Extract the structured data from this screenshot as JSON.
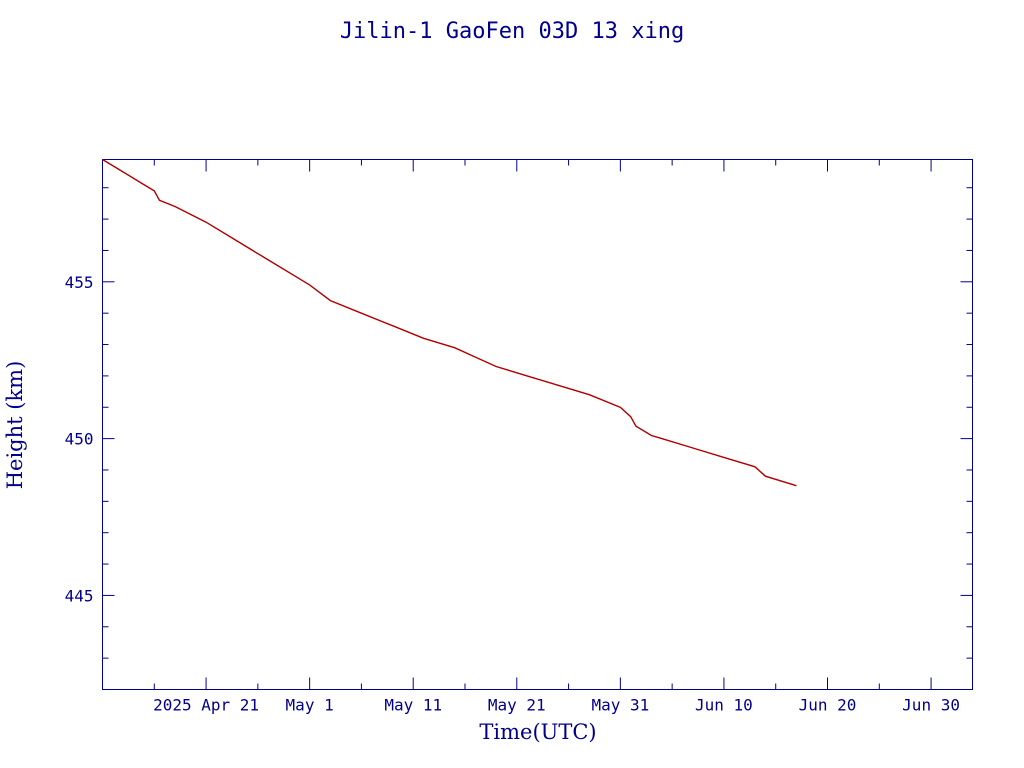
{
  "chart_data": {
    "type": "line",
    "title": "Jilin-1 GaoFen 03D 13 xing",
    "xlabel": "Time(UTC)",
    "ylabel": "Height (km)",
    "x_ticks": [
      {
        "date": "2025-04-21",
        "label": "2025 Apr 21"
      },
      {
        "date": "2025-05-01",
        "label": "May  1"
      },
      {
        "date": "2025-05-11",
        "label": "May 11"
      },
      {
        "date": "2025-05-21",
        "label": "May 21"
      },
      {
        "date": "2025-05-31",
        "label": "May 31"
      },
      {
        "date": "2025-06-10",
        "label": "Jun 10"
      },
      {
        "date": "2025-06-20",
        "label": "Jun 20"
      },
      {
        "date": "2025-06-30",
        "label": "Jun 30"
      }
    ],
    "xlim": [
      "2025-04-11",
      "2025-07-04"
    ],
    "ylim": [
      442.0,
      458.9
    ],
    "y_ticks": [
      445,
      450,
      455
    ],
    "line_color": "#b00000",
    "axis_color": "#00008b",
    "grid": false,
    "series": [
      {
        "x": [
          "2025-04-11",
          "2025-04-13",
          "2025-04-15",
          "2025-04-16",
          "2025-04-16T12:00",
          "2025-04-18",
          "2025-04-21",
          "2025-04-24",
          "2025-04-27",
          "2025-04-30",
          "2025-05-01",
          "2025-05-03",
          "2025-05-06",
          "2025-05-09",
          "2025-05-12",
          "2025-05-15",
          "2025-05-17",
          "2025-05-19",
          "2025-05-22",
          "2025-05-25",
          "2025-05-28",
          "2025-05-31",
          "2025-06-01",
          "2025-06-01T12:00",
          "2025-06-03",
          "2025-06-04",
          "2025-06-07",
          "2025-06-10",
          "2025-06-13",
          "2025-06-14",
          "2025-06-17"
        ],
        "y": [
          458.9,
          458.5,
          458.1,
          457.9,
          457.6,
          457.4,
          456.9,
          456.3,
          455.7,
          455.1,
          454.9,
          454.4,
          454.0,
          453.6,
          453.2,
          452.9,
          452.6,
          452.3,
          452.0,
          451.7,
          451.4,
          451.0,
          450.7,
          450.4,
          450.1,
          450.0,
          449.7,
          449.4,
          449.1,
          448.8,
          448.5
        ]
      }
    ]
  }
}
